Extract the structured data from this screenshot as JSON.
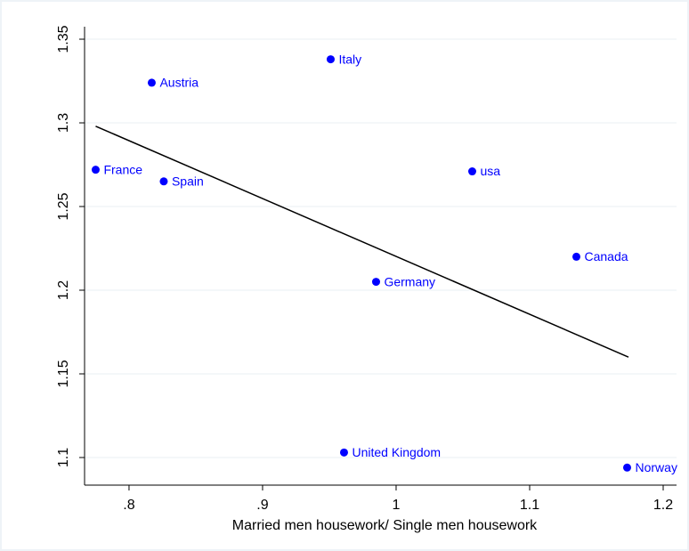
{
  "chart_data": {
    "type": "scatter",
    "xlabel": "Married men housework/ Single men housework",
    "labels": [
      "France",
      "Spain",
      "Austria",
      "Italy",
      "usa",
      "Canada",
      "Germany",
      "United Kingdom",
      "Norway"
    ],
    "x": [
      0.775,
      0.826,
      0.817,
      0.951,
      1.057,
      1.135,
      0.985,
      0.961,
      1.173
    ],
    "values": [
      1.272,
      1.265,
      1.324,
      1.338,
      1.271,
      1.22,
      1.205,
      1.103,
      1.094
    ],
    "color": "#0000ff",
    "fit": {
      "x": [
        0.775,
        1.174
      ],
      "values": [
        1.298,
        1.16
      ],
      "color": "#000000"
    },
    "xlim": [
      0.7667,
      1.21
    ],
    "ylim": [
      1.0835,
      1.3681
    ],
    "xticks": [
      {
        "value": 0.8,
        "label": ".8"
      },
      {
        "value": 0.9,
        "label": ".9"
      },
      1,
      1.1,
      1.2
    ],
    "yticks": [
      1.1,
      1.15,
      1.2,
      1.25,
      1.3,
      1.35
    ],
    "grid": true
  }
}
